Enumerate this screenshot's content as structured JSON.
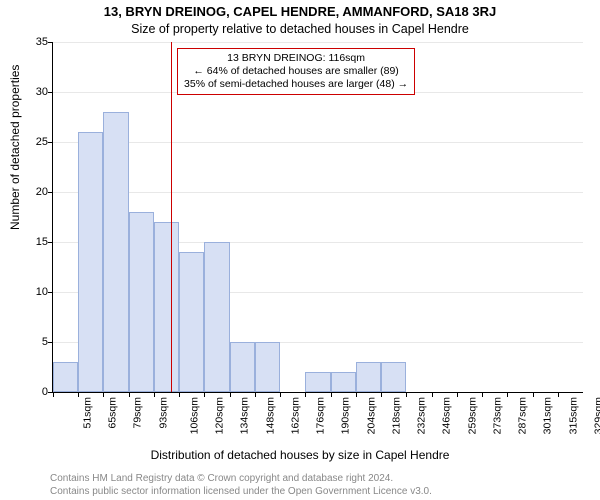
{
  "titles": {
    "main": "13, BRYN DREINOG, CAPEL HENDRE, AMMANFORD, SA18 3RJ",
    "sub": "Size of property relative to detached houses in Capel Hendre",
    "ylabel": "Number of detached properties",
    "xlabel": "Distribution of detached houses by size in Capel Hendre"
  },
  "footer": {
    "line1": "Contains HM Land Registry data © Crown copyright and database right 2024.",
    "line2": "Contains public sector information licensed under the Open Government Licence v3.0."
  },
  "chart": {
    "type": "histogram",
    "ylim": [
      0,
      35
    ],
    "ytick_step": 5,
    "background_color": "#ffffff",
    "grid_color": "#e8e8e8",
    "axis_color": "#000000",
    "bar_fill": "#d7e0f4",
    "bar_stroke": "#9ab0dc",
    "marker_color": "#cc0000",
    "categories": [
      "51sqm",
      "65sqm",
      "79sqm",
      "93sqm",
      "106sqm",
      "120sqm",
      "134sqm",
      "148sqm",
      "162sqm",
      "176sqm",
      "190sqm",
      "204sqm",
      "218sqm",
      "232sqm",
      "246sqm",
      "259sqm",
      "273sqm",
      "287sqm",
      "301sqm",
      "315sqm",
      "329sqm"
    ],
    "values": [
      3,
      26,
      28,
      18,
      17,
      14,
      15,
      5,
      5,
      0,
      2,
      2,
      3,
      3,
      0,
      0,
      0,
      0,
      0,
      0,
      0
    ],
    "marker_value_sqm": 116,
    "label_fontsize": 12,
    "tick_fontsize": 11
  },
  "callout": {
    "line1": "13 BRYN DREINOG: 116sqm",
    "line2": "← 64% of detached houses are smaller (89)",
    "line3": "35% of semi-detached houses are larger (48) →"
  }
}
